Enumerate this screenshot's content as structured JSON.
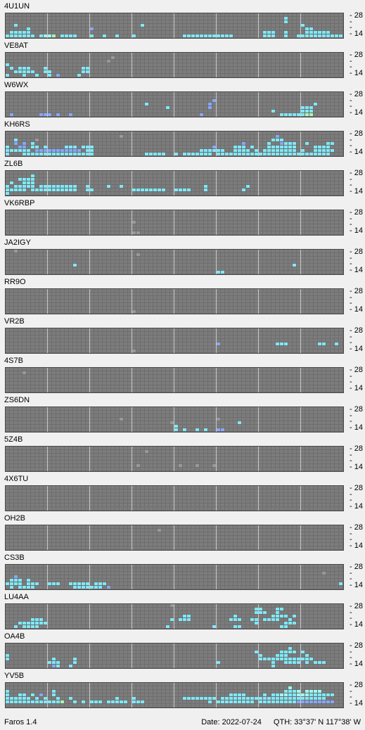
{
  "app": {
    "name": "Faros 1.4"
  },
  "footer": {
    "date_text": "Date: 2022-07-24",
    "qth_text": "QTH: 33°37' N  117°38' W"
  },
  "axis": {
    "top_label": "28",
    "mid_marks": [
      "-",
      "-"
    ],
    "bottom_label": "14"
  },
  "colors": {
    "background": "#6e6e6e",
    "cell_empty": "#7c7c7c",
    "cell_border": "#6a6a6a",
    "level_1": "#9a9a9a",
    "level_2": "#7fe9f9",
    "level_3": "#9ffff0",
    "level_4": "#a8ffb0",
    "level_5": "#86a8ff",
    "level_6": "#b8e8a0"
  },
  "beacons": [
    {
      "callsign": "4U1UN",
      "rows": [
        "................................................................................",
        "..................................................................2.............",
        "..................................................................2.............",
        "..2.............................2.....................................2...........",
        ".....2..............5..................................................22.......",
        ".22222.......................................................222..2....222222....",
        "2222222.2334.2222...2..2..2...2...........222222222222.......222..2..222222222222"
      ]
    },
    {
      "callsign": "VE8AT",
      "rows": [
        "..........................................................................",
        ".........................1................................................",
        "........................1.................................................",
        "2.......................................................................",
        ".2.222...2........22.......................................................",
        "..22222..22.......22......................................................",
        "2...2..2..2.5....2........................................................."
      ]
    },
    {
      "callsign": "W6WX",
      "rows": [
        "...........................................................................",
        "..........................................................................",
        ".................................................5.........................",
        ".................................2..............5........................2",
        "......................................2.........5.....................222.",
        "...............................................................2......222.",
        ".5......555.5..5..............................5..................22222244"
      ]
    },
    {
      "callsign": "KH6RS",
      "rows": [
        "...............................................................................",
        "...........................1....................................5..............",
        "..2....1.......................................................222..............",
        "..5.5.2.................................................5.....2..5222..2....22..",
        "2..55.22.2....222.222............................5....222.2...2222222....2222..",
        "222222.55555555555.22.........................222222..2222.2.22222222.2..22222.",
        "2...22222222222222222............22222..2.2222222.222222222222222222222222222"
      ]
    },
    {
      "callsign": "ZL6B",
      "rows": [
        "...........................................................................",
        "......2..........................................................................",
        "...2222.........................................................................",
        ".2..222.........................................................................",
        "2.22222.222222222..2....2..2...................2.........2.....................",
        "22222.22222222222..22.........22222222..2222...2........2..........................",
        "2..........................................................................."
      ]
    },
    {
      "callsign": "VK6RBP",
      "rows": [
        "..............................................................................",
        "..............................................................................",
        "..............................................................................",
        "..............................1...............................................",
        "..............................................................................",
        "..............................................................................",
        "..............................11.............................................."
      ]
    },
    {
      "callsign": "JA2IGY",
      "rows": [
        "..1.............................................................................",
        "...............................1..............................................",
        "..............................................................................",
        "..............................................................................",
        "................2...................................................2.........",
        "..............................................................................",
        "..................................................22..........................."
      ]
    },
    {
      "callsign": "RR9O",
      "rows": [
        "..............................................................................",
        "..............................................................................",
        "..............................................................................",
        "..............................................................................",
        "..............................................................................",
        "..............................................................................",
        "..............................1..............................................."
      ]
    },
    {
      "callsign": "VR2B",
      "rows": [
        "..............................................................................",
        "..............................................................................",
        "..............................................................................",
        "..............................................................................",
        "..................................................5.............222.......22..2..",
        "..............................................................................",
        "..............................1..............................................."
      ]
    },
    {
      "callsign": "4S7B",
      "rows": [
        "..............................................................................",
        "....1.........................................................................",
        "..............................................................................",
        "..............................................................................",
        "..............................................................................",
        "..............................................................................",
        "..............................................................................."
      ]
    },
    {
      "callsign": "ZS6DN",
      "rows": [
        "..............................................................................",
        "..............................................................................",
        "..............................................................................",
        "...........................1......................1.............................",
        ".......................................1...............2.......................",
        "........................................2.................................",
        "........................................2.2..2.2..55......................."
      ]
    },
    {
      "callsign": "5Z4B",
      "rows": [
        "..............................................................................",
        ".................................1...........................................",
        "..............................................................................",
        "..............................................................................",
        "..............................................................................",
        "...............................1.........1...1...1............................",
        ".............................................................................."
      ]
    },
    {
      "callsign": "4X6TU",
      "rows": [
        "..............................................................................",
        "..............................................................................",
        "..............................................................................",
        "..............................................................................",
        "..............................................................................",
        "..............................................................................",
        ".............................................................................."
      ]
    },
    {
      "callsign": "OH2B",
      "rows": [
        "..............................................................................",
        "....................................1.........................................",
        "..............................................................................",
        "..............................................................................",
        "..............................................................................",
        "..............................................................................",
        ".............................................................................."
      ]
    },
    {
      "callsign": "CS3B",
      "rows": [
        "..............................................................................",
        "..............................................................................",
        "...........................................................................1..",
        "..5..........................................................................",
        ".222.2..........................................................................",
        "2222.222..222..22222.222.......................................................22.",
        ".2.2222.........2222222.5..........................................................."
      ]
    },
    {
      "callsign": "LU4AA",
      "rows": [
        ".......................................1.....................................",
        "...........................................................22...22.......",
        "...........................................................222..2........",
        "..........................................22..........2........2222.2........",
        "......222..............................2.222.........222..22.2222..2........",
        "...2222222.................................................2......222.........",
        "..2.2222..............................2..........2....22.........22.........."
      ]
    },
    {
      "callsign": "OA4B",
      "rows": [
        "..............................................................................",
        "...................................................................2..........",
        "...........................................................2.....2222.2.......",
        "2...........................................................2...222....2........",
        "2..........2....2...........................................2222222222222...",
        "..........222...2.................................2............2..2222.2.222...",
        "...........52..2...............................................2....................."
      ]
    },
    {
      "callsign": "YV5B",
      "rows": [
        "..............................................................................",
        "...................................................................3...........",
        "2..........2......................................................2223.3333....",
        "2..22.2.5..2.........................................2222....2.223322333222222....",
        "222222.2.2..2..2..........2...2...........22222222.2222222222222222222222222....",
        "22222222222224..2.2.222.22222.222...............2.222222222.222222222555555555..",
        "..............................................................................."
      ]
    }
  ]
}
